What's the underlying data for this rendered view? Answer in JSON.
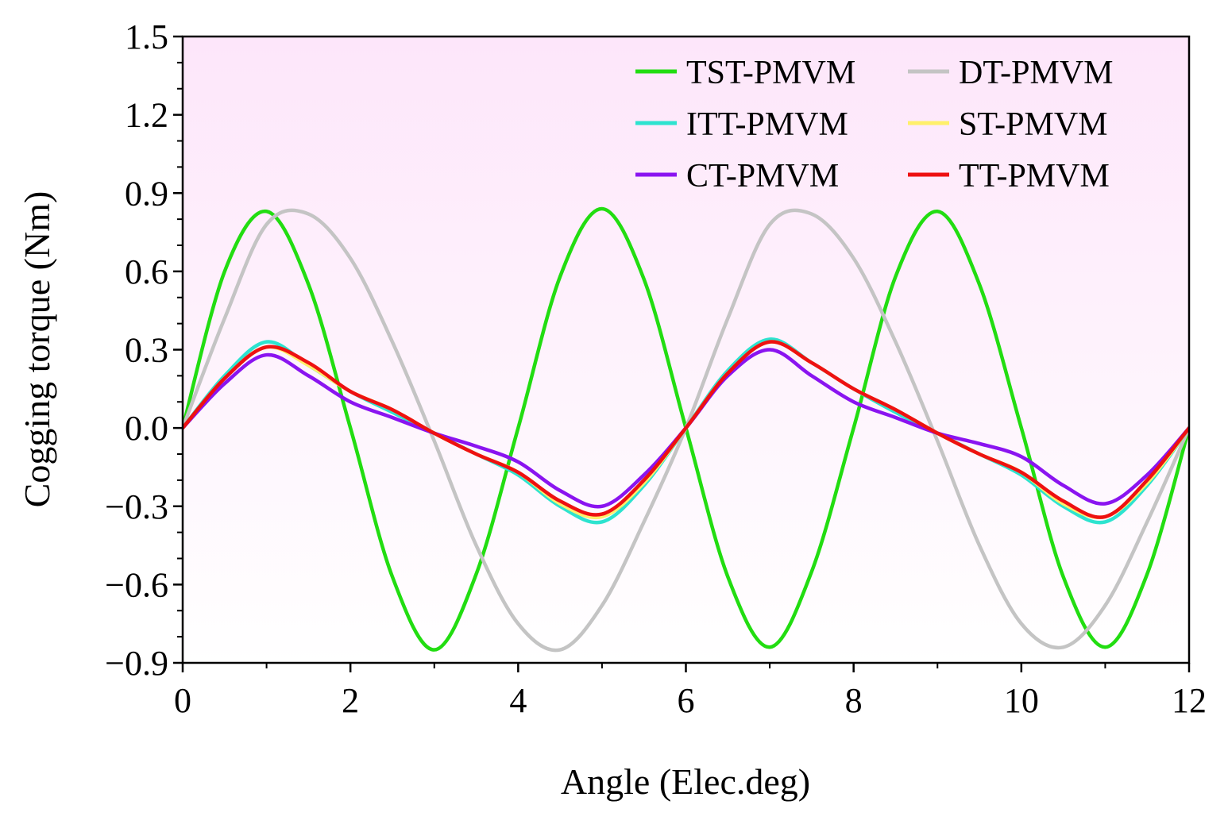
{
  "chart_data": {
    "type": "line",
    "title": "",
    "xlabel": "Angle (Elec.deg)",
    "ylabel": "Cogging torque (Nm)",
    "xlim": [
      0,
      12
    ],
    "ylim": [
      -0.9,
      1.5
    ],
    "xticks": [
      0,
      2,
      4,
      6,
      8,
      10,
      12
    ],
    "xtick_labels": [
      "0",
      "2",
      "4",
      "6",
      "8",
      "10",
      "12"
    ],
    "yticks": [
      -0.9,
      -0.6,
      -0.3,
      0.0,
      0.3,
      0.6,
      0.9,
      1.2,
      1.5
    ],
    "ytick_labels": [
      "−0.9",
      "−0.6",
      "−0.3",
      "0.0",
      "0.3",
      "0.6",
      "0.9",
      "1.2",
      "1.5"
    ],
    "grid": false,
    "legend_position": "top-right",
    "background": {
      "top": "#fde6fa",
      "bottom": "#ffffff"
    },
    "x": [
      0,
      0.5,
      1,
      1.5,
      2,
      2.5,
      3,
      3.5,
      4,
      4.5,
      5,
      5.5,
      6,
      6.5,
      7,
      7.5,
      8,
      8.5,
      9,
      9.5,
      10,
      10.5,
      11,
      11.5,
      12
    ],
    "series": [
      {
        "name": "TST-PMVM",
        "color": "#22dd11",
        "values": [
          0.0,
          0.6,
          0.83,
          0.55,
          0.0,
          -0.57,
          -0.85,
          -0.56,
          0.0,
          0.58,
          0.84,
          0.57,
          0.0,
          -0.57,
          -0.84,
          -0.55,
          0.0,
          0.58,
          0.83,
          0.55,
          0.0,
          -0.57,
          -0.84,
          -0.56,
          0.0
        ]
      },
      {
        "name": "DT-PMVM",
        "color": "#c4c4c4",
        "values": [
          0.0,
          0.42,
          0.78,
          0.82,
          0.65,
          0.33,
          -0.05,
          -0.45,
          -0.75,
          -0.85,
          -0.68,
          -0.36,
          0.0,
          0.42,
          0.78,
          0.82,
          0.65,
          0.33,
          -0.05,
          -0.45,
          -0.75,
          -0.84,
          -0.68,
          -0.36,
          0.0
        ]
      },
      {
        "name": "ITT-PMVM",
        "color": "#2de3cf",
        "values": [
          0.0,
          0.2,
          0.33,
          0.24,
          0.14,
          0.06,
          -0.02,
          -0.1,
          -0.18,
          -0.3,
          -0.36,
          -0.22,
          0.0,
          0.22,
          0.34,
          0.25,
          0.15,
          0.06,
          -0.02,
          -0.1,
          -0.18,
          -0.3,
          -0.36,
          -0.22,
          0.0
        ]
      },
      {
        "name": "ST-PMVM",
        "color": "#fff06a",
        "values": [
          0.0,
          0.19,
          0.31,
          0.24,
          0.14,
          0.07,
          -0.02,
          -0.1,
          -0.17,
          -0.29,
          -0.34,
          -0.21,
          0.0,
          0.21,
          0.33,
          0.25,
          0.15,
          0.07,
          -0.02,
          -0.1,
          -0.17,
          -0.29,
          -0.34,
          -0.21,
          0.0
        ]
      },
      {
        "name": "CT-PMVM",
        "color": "#8a14f0",
        "values": [
          0.0,
          0.17,
          0.28,
          0.2,
          0.1,
          0.04,
          -0.02,
          -0.07,
          -0.13,
          -0.24,
          -0.3,
          -0.18,
          0.0,
          0.2,
          0.3,
          0.2,
          0.1,
          0.04,
          -0.02,
          -0.06,
          -0.11,
          -0.22,
          -0.29,
          -0.18,
          0.0
        ]
      },
      {
        "name": "TT-PMVM",
        "color": "#ee1111",
        "values": [
          0.0,
          0.19,
          0.31,
          0.25,
          0.14,
          0.07,
          -0.02,
          -0.1,
          -0.17,
          -0.28,
          -0.33,
          -0.2,
          0.0,
          0.21,
          0.33,
          0.25,
          0.15,
          0.07,
          -0.02,
          -0.1,
          -0.17,
          -0.28,
          -0.34,
          -0.2,
          0.0
        ]
      }
    ],
    "legend_order": [
      "TST-PMVM",
      "DT-PMVM",
      "ITT-PMVM",
      "ST-PMVM",
      "CT-PMVM",
      "TT-PMVM"
    ]
  }
}
